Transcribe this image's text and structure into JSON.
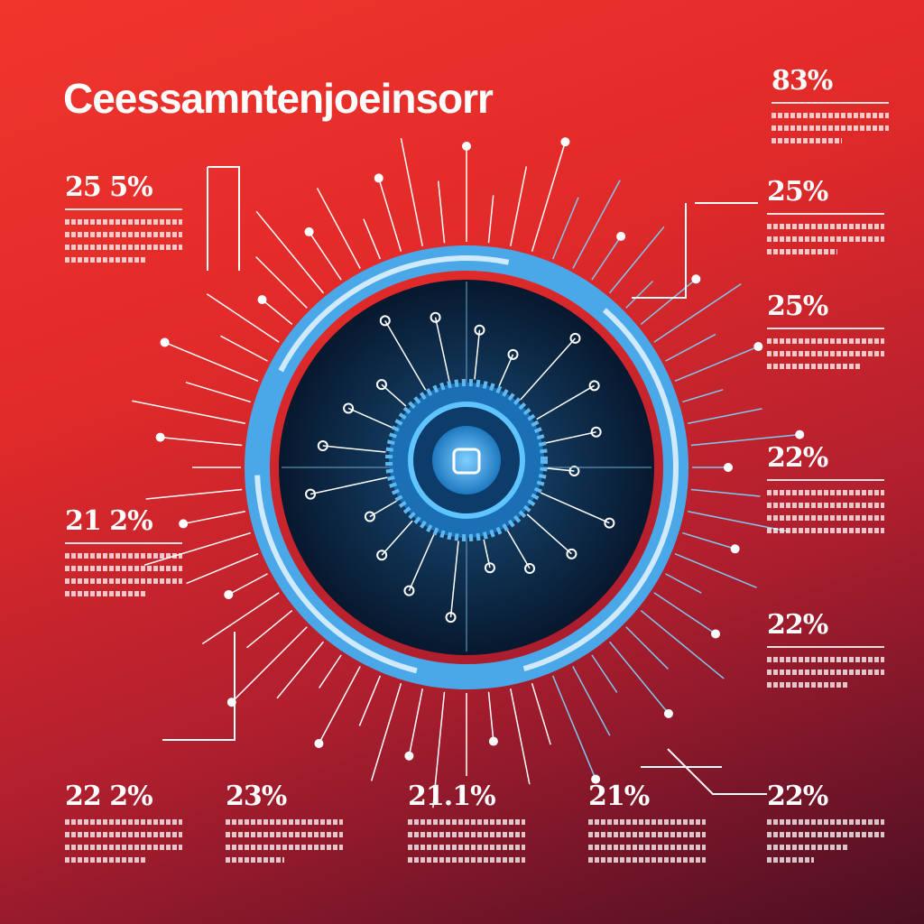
{
  "title": "Ceessamntenjoeinsorr",
  "colors": {
    "background_top": "#f0352c",
    "background_bottom": "#4a0f22",
    "ring": "#4aa8e8",
    "disc": "#0c2a48",
    "line": "#ffffff"
  },
  "center_icon": "gear-hub-icon",
  "stats": {
    "left": [
      {
        "value": "25 5%"
      },
      {
        "value": "21 2%"
      },
      {
        "value": "22 2%"
      }
    ],
    "right": [
      {
        "value": "83%"
      },
      {
        "value": "25%"
      },
      {
        "value": "25%"
      },
      {
        "value": "22%"
      },
      {
        "value": "22%"
      },
      {
        "value": "22%"
      }
    ],
    "bottom": [
      {
        "value": "23%"
      },
      {
        "value": "21.1%"
      },
      {
        "value": "21%"
      }
    ]
  }
}
